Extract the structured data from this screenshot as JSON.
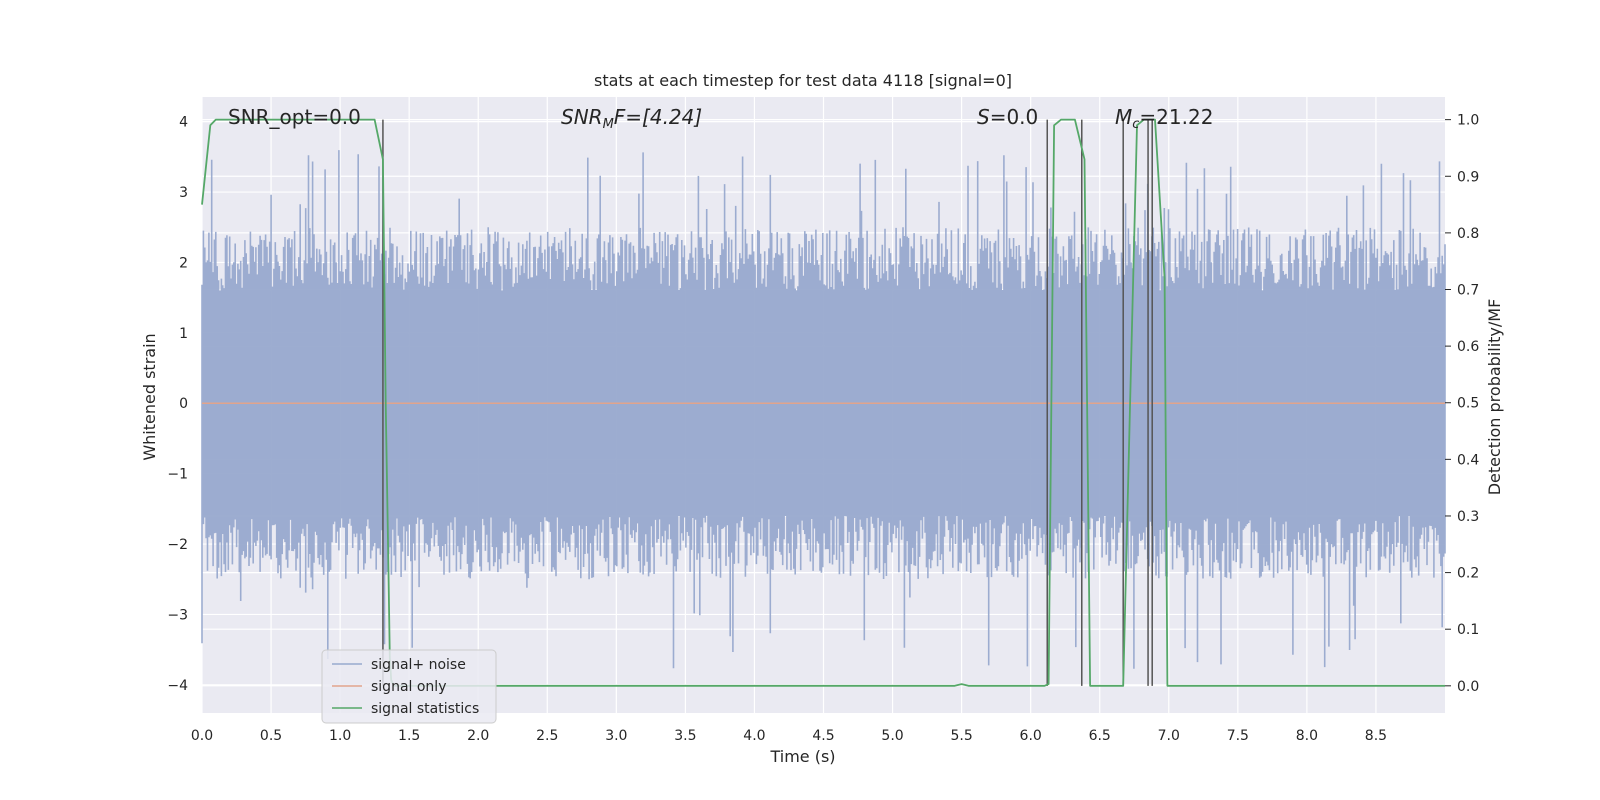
{
  "chart_data": {
    "type": "line",
    "title": "stats at each timestep for test data 4118 [signal=0]",
    "xlabel": "Time (s)",
    "ylabel": "Whitened strain",
    "ylabel_right": "Detection probability/MF",
    "xlim": [
      0.0,
      9.0
    ],
    "ylim": [
      -4.4,
      4.35
    ],
    "ylim_right": [
      -0.048,
      1.04
    ],
    "grid": true,
    "x_ticks": [
      "0.0",
      "0.5",
      "1.0",
      "1.5",
      "2.0",
      "2.5",
      "3.0",
      "3.5",
      "4.0",
      "4.5",
      "5.0",
      "5.5",
      "6.0",
      "6.5",
      "7.0",
      "7.5",
      "8.0",
      "8.5"
    ],
    "y_ticks": [
      "4",
      "3",
      "2",
      "1",
      "0",
      "−1",
      "−2",
      "−3",
      "−4"
    ],
    "y_right_ticks": [
      "1.0",
      "0.9",
      "0.8",
      "0.7",
      "0.6",
      "0.5",
      "0.4",
      "0.3",
      "0.2",
      "0.1",
      "0.0"
    ],
    "annotations": {
      "snr_opt": "SNR_opt=0.0",
      "snr_mf_prefix": "SNR",
      "snr_mf_sub": "M",
      "snr_mf_suffix": "F=[4.24]",
      "s_var": "S",
      "s_value": "=0.0",
      "mc_var": "M",
      "mc_sub": "c",
      "mc_value": "=21.22"
    },
    "legend": {
      "position": "lower-left",
      "entries": [
        "signal+ noise",
        "signal only",
        "signal statistics"
      ]
    },
    "colors": {
      "signal_noise": "#98a9ce",
      "signal_only": "#e1a48c",
      "signal_statistics": "#55a868",
      "markers": "#555555",
      "plot_bg": "#eaeaf2"
    },
    "series": [
      {
        "name": "signal+ noise",
        "kind": "noise-envelope",
        "typical_upper": 1.6,
        "typical_lower": -1.6,
        "peak_upper": 3.6,
        "peak_lower": -3.8
      },
      {
        "name": "signal only",
        "x": [
          0.0,
          9.0
        ],
        "y": [
          0.0,
          0.0
        ]
      },
      {
        "name": "signal statistics",
        "axis": "right",
        "x": [
          0.0,
          0.06,
          0.1,
          0.2,
          1.0,
          1.25,
          1.31,
          1.33,
          1.35,
          1.36,
          1.37,
          1.39,
          1.42,
          5.45,
          5.5,
          5.55,
          6.1,
          6.13,
          6.17,
          6.22,
          6.32,
          6.39,
          6.43,
          6.67,
          6.72,
          6.77,
          6.82,
          6.9,
          6.97,
          6.99,
          7.1,
          9.0
        ],
        "y": [
          0.85,
          0.99,
          1.0,
          1.0,
          1.0,
          1.0,
          0.93,
          0.5,
          0.2,
          0.05,
          0.01,
          0.0,
          0.0,
          0.0,
          0.003,
          0.0,
          0.0,
          0.003,
          0.99,
          1.0,
          1.0,
          0.93,
          0.0,
          0.0,
          0.5,
          0.99,
          1.0,
          1.0,
          0.72,
          0.0,
          0.0,
          0.0
        ]
      }
    ],
    "vlines": [
      1.31,
      6.12,
      6.37,
      6.67,
      6.85,
      6.88
    ]
  }
}
